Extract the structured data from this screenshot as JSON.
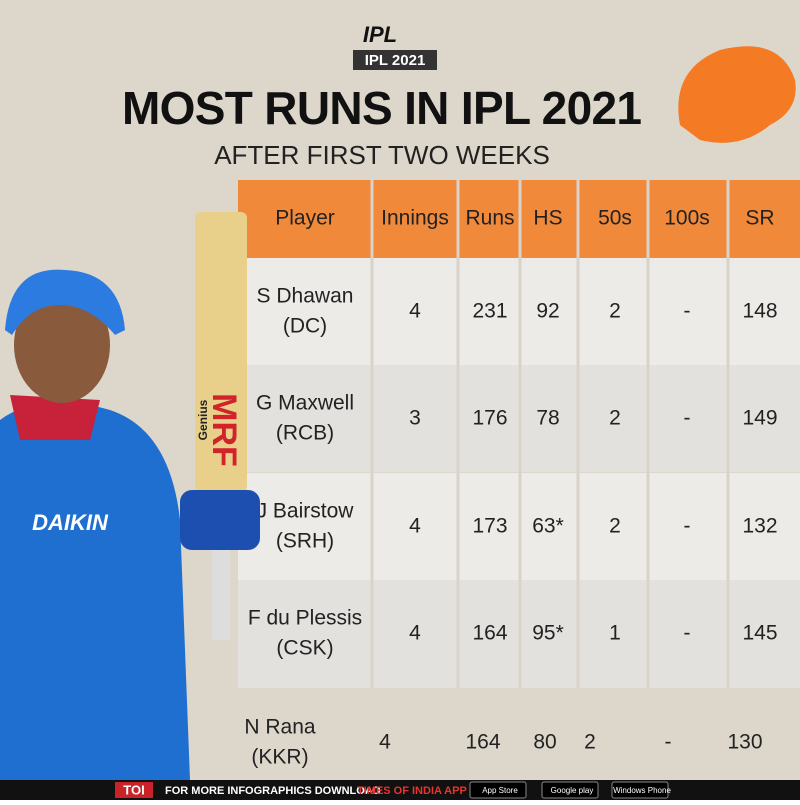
{
  "header": {
    "logo": "IPL",
    "badge": "IPL 2021",
    "title": "MOST RUNS IN IPL 2021",
    "subtitle": "AFTER FIRST TWO WEEKS"
  },
  "table": {
    "columns": [
      "Player",
      "Innings",
      "Runs",
      "HS",
      "50s",
      "100s",
      "SR"
    ],
    "rows": [
      {
        "player": "S Dhawan",
        "team": "(DC)",
        "cells": [
          4,
          231,
          92,
          2,
          "-",
          148
        ]
      },
      {
        "player": "G Maxwell",
        "team": "(RCB)",
        "cells": [
          3,
          176,
          78,
          2,
          "-",
          149
        ]
      },
      {
        "player": "J Bairstow",
        "team": "(SRH)",
        "cells": [
          4,
          173,
          "63*",
          2,
          "-",
          132
        ]
      },
      {
        "player": "F du Plessis",
        "team": "(CSK)",
        "cells": [
          4,
          164,
          "95*",
          1,
          "-",
          145
        ]
      },
      {
        "player": "N Rana",
        "team": "(KKR)",
        "cells": [
          4,
          164,
          80,
          2,
          "-",
          130
        ]
      }
    ]
  },
  "image": {
    "jersey": "DAIKIN",
    "bat": "MRF",
    "bat_text": "Genius"
  },
  "footer": {
    "brand": "TOI",
    "lead": "FOR MORE  INFOGRAPHICS DOWNLOAD",
    "app": "TIMES OF INDIA APP",
    "badges": [
      "App Store",
      "Google play",
      "Windows Phone"
    ]
  }
}
